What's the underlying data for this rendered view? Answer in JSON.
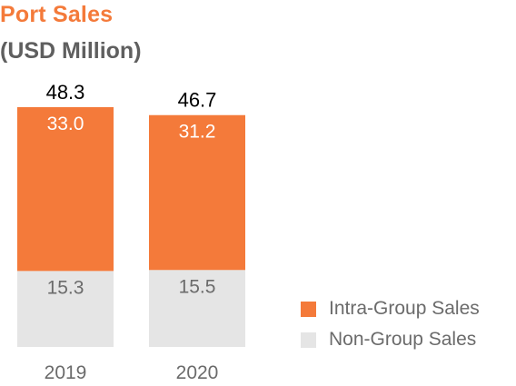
{
  "header": {
    "title": "Port Sales",
    "subtitle": "(USD Million)"
  },
  "colors": {
    "intra": "#F47A3A",
    "non": "#E5E5E5",
    "title": "#F47A3A",
    "subtitle": "#5f5f5f",
    "axis_text": "#6b6b6b",
    "total_text": "#000000"
  },
  "chart_data": {
    "type": "bar",
    "stacked": true,
    "title": "Port Sales",
    "subtitle": "(USD Million)",
    "categories": [
      "2019",
      "2020"
    ],
    "series": [
      {
        "name": "Non-Group Sales",
        "values": [
          15.3,
          15.5
        ],
        "labels": [
          "15.3",
          "15.5"
        ]
      },
      {
        "name": "Intra-Group Sales",
        "values": [
          33.0,
          31.2
        ],
        "labels": [
          "33.0",
          "31.2"
        ]
      }
    ],
    "totals": [
      48.3,
      46.7
    ],
    "total_labels": [
      "48.3",
      "46.7"
    ],
    "legend": [
      "Intra-Group Sales",
      "Non-Group Sales"
    ],
    "legend_position": "right",
    "xlabel": "",
    "ylabel": "",
    "grid": false,
    "ylim": [
      0,
      48.3
    ]
  }
}
